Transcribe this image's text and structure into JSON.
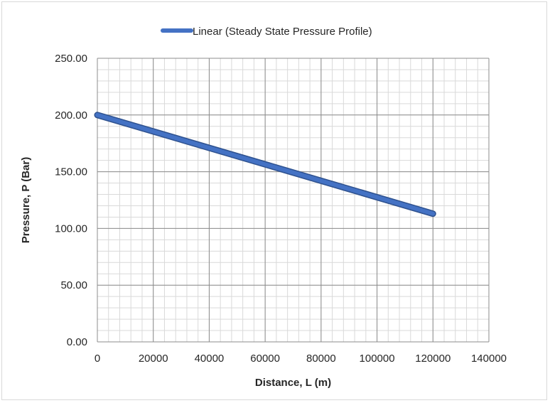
{
  "chart_data": {
    "type": "line",
    "title": "",
    "xlabel": "Distance, L (m)",
    "ylabel": "Pressure, P (Bar)",
    "xlim": [
      0,
      140000
    ],
    "ylim": [
      0,
      250
    ],
    "x_ticks": [
      0,
      20000,
      40000,
      60000,
      80000,
      100000,
      120000,
      140000
    ],
    "x_tick_labels": [
      "0",
      "20000",
      "40000",
      "60000",
      "80000",
      "100000",
      "120000",
      "140000"
    ],
    "y_ticks": [
      0,
      50,
      100,
      150,
      200,
      250
    ],
    "y_tick_labels": [
      "0.00",
      "50.00",
      "100.00",
      "150.00",
      "200.00",
      "250.00"
    ],
    "grid": true,
    "minor_grid": true,
    "legend_position": "top-center",
    "series": [
      {
        "name": "Linear (Steady State Pressure Profile)",
        "color": "#4472c4",
        "x": [
          0,
          120000
        ],
        "y": [
          200,
          113
        ]
      }
    ]
  }
}
